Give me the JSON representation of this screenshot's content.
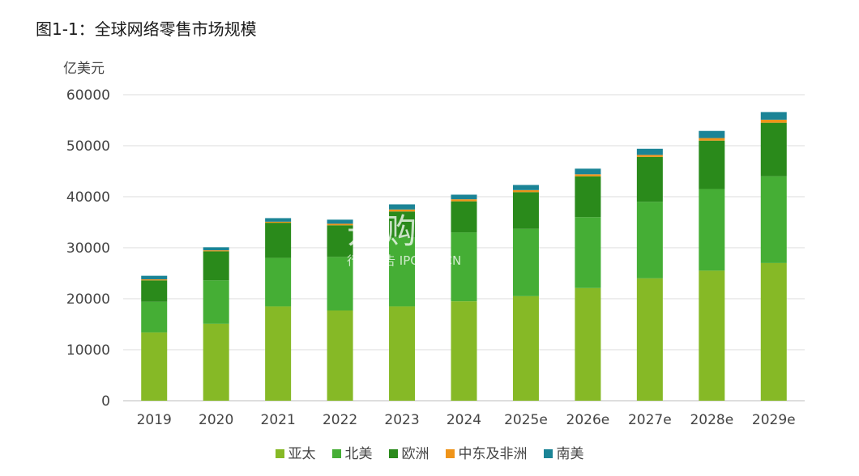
{
  "title": "图1-1：全球网络零售市场规模",
  "watermark": {
    "main": "开购家",
    "sub": "行业报告 IPOIPO.CN"
  },
  "chart_data": {
    "type": "bar",
    "stacked": true,
    "ylabel": "亿美元",
    "ylim": [
      0,
      60000
    ],
    "yticks": [
      0,
      10000,
      20000,
      30000,
      40000,
      50000,
      60000
    ],
    "grid": true,
    "legend_position": "bottom",
    "categories": [
      "2019",
      "2020",
      "2021",
      "2022",
      "2023",
      "2024",
      "2025e",
      "2026e",
      "2027e",
      "2028e",
      "2029e"
    ],
    "series": [
      {
        "name": "亚太",
        "color": "#86b926",
        "values": [
          13400,
          15100,
          18500,
          17700,
          18500,
          19500,
          20500,
          22100,
          24000,
          25500,
          27000
        ]
      },
      {
        "name": "北美",
        "color": "#45ae35",
        "values": [
          6000,
          8500,
          9500,
          10500,
          13500,
          13500,
          13200,
          13900,
          15000,
          16000,
          17000
        ]
      },
      {
        "name": "欧洲",
        "color": "#2a8a1b",
        "values": [
          4200,
          5700,
          6900,
          6200,
          5100,
          6100,
          7200,
          8000,
          8800,
          9500,
          10500
        ]
      },
      {
        "name": "中东及非洲",
        "color": "#ef9419",
        "values": [
          200,
          200,
          200,
          300,
          400,
          400,
          400,
          400,
          400,
          500,
          600
        ]
      },
      {
        "name": "南美",
        "color": "#1b8496",
        "values": [
          700,
          600,
          700,
          800,
          1000,
          900,
          1000,
          1100,
          1200,
          1400,
          1500
        ]
      }
    ]
  }
}
